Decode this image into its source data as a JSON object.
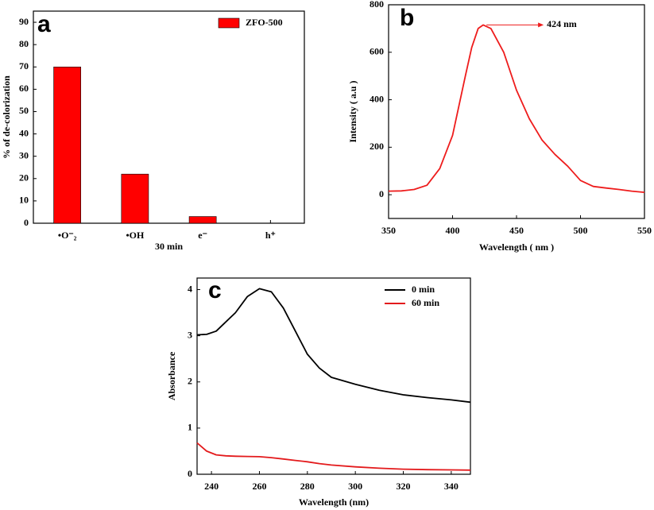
{
  "chart_data": [
    {
      "type": "bar",
      "panel_label": "a",
      "ylabel": "% of de-colorization",
      "xlabel": "30 min",
      "categories": [
        "•O⁻₂",
        "•OH",
        "e⁻",
        "h⁺"
      ],
      "series": [
        {
          "name": "ZFO-500",
          "color": "#ff0000",
          "values": [
            70,
            22,
            3,
            0
          ]
        }
      ],
      "ylim": [
        0,
        95
      ],
      "yticks": [
        0,
        10,
        20,
        30,
        40,
        50,
        60,
        70,
        80,
        90
      ],
      "legend": "upper right"
    },
    {
      "type": "line",
      "panel_label": "b",
      "ylabel": "Intensity ( a.u )",
      "xlabel": "Wavelength ( nm )",
      "annotation": "424 nm",
      "x": [
        350,
        360,
        370,
        380,
        390,
        400,
        410,
        415,
        420,
        424,
        430,
        440,
        450,
        460,
        470,
        480,
        490,
        500,
        510,
        520,
        530,
        540,
        550
      ],
      "values": [
        15,
        16,
        22,
        40,
        110,
        250,
        500,
        620,
        700,
        715,
        700,
        600,
        440,
        320,
        230,
        170,
        120,
        60,
        35,
        28,
        22,
        15,
        10
      ],
      "color": "#ee1c1c",
      "xlim": [
        350,
        550
      ],
      "xticks": [
        350,
        400,
        450,
        500,
        550
      ],
      "ylim": [
        -100,
        800
      ],
      "yticks": [
        0,
        200,
        400,
        600,
        800
      ]
    },
    {
      "type": "line",
      "panel_label": "c",
      "ylabel": "Absorbance",
      "xlabel": "Wavelength (nm)",
      "x": [
        234,
        238,
        242,
        246,
        250,
        255,
        260,
        265,
        270,
        275,
        280,
        285,
        290,
        300,
        310,
        320,
        330,
        340,
        348
      ],
      "series": [
        {
          "name": "0 min",
          "color": "#000000",
          "values": [
            3.02,
            3.03,
            3.1,
            3.3,
            3.5,
            3.85,
            4.02,
            3.95,
            3.6,
            3.1,
            2.6,
            2.3,
            2.1,
            1.95,
            1.82,
            1.72,
            1.66,
            1.61,
            1.56
          ]
        },
        {
          "name": "60 min",
          "color": "#e31a1c",
          "values": [
            0.68,
            0.5,
            0.42,
            0.4,
            0.39,
            0.385,
            0.38,
            0.36,
            0.33,
            0.3,
            0.27,
            0.23,
            0.2,
            0.16,
            0.13,
            0.11,
            0.1,
            0.095,
            0.09
          ]
        }
      ],
      "xlim": [
        234,
        348
      ],
      "xticks": [
        240,
        260,
        280,
        300,
        320,
        340
      ],
      "ylim": [
        0,
        4.25
      ],
      "yticks": [
        0,
        1,
        2,
        3,
        4
      ],
      "legend": "upper right"
    }
  ]
}
